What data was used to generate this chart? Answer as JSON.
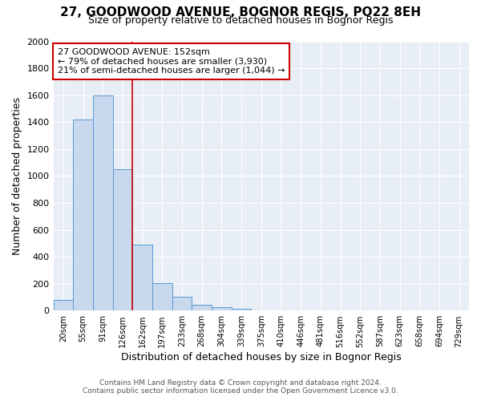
{
  "title_line1": "27, GOODWOOD AVENUE, BOGNOR REGIS, PO22 8EH",
  "title_line2": "Size of property relative to detached houses in Bognor Regis",
  "xlabel": "Distribution of detached houses by size in Bognor Regis",
  "ylabel": "Number of detached properties",
  "categories": [
    "20sqm",
    "55sqm",
    "91sqm",
    "126sqm",
    "162sqm",
    "197sqm",
    "233sqm",
    "268sqm",
    "304sqm",
    "339sqm",
    "375sqm",
    "410sqm",
    "446sqm",
    "481sqm",
    "516sqm",
    "552sqm",
    "587sqm",
    "623sqm",
    "658sqm",
    "694sqm",
    "729sqm"
  ],
  "values": [
    80,
    1420,
    1600,
    1050,
    490,
    205,
    105,
    45,
    25,
    15,
    0,
    0,
    0,
    0,
    0,
    0,
    0,
    0,
    0,
    0,
    0
  ],
  "bar_color": "#c8d8ed",
  "bar_edge_color": "#5a9ad4",
  "vline_color": "#cc0000",
  "annotation_text": "27 GOODWOOD AVENUE: 152sqm\n← 79% of detached houses are smaller (3,930)\n21% of semi-detached houses are larger (1,044) →",
  "annotation_box_color": "white",
  "annotation_box_edge_color": "#cc0000",
  "ylim": [
    0,
    2000
  ],
  "yticks": [
    0,
    200,
    400,
    600,
    800,
    1000,
    1200,
    1400,
    1600,
    1800,
    2000
  ],
  "fig_background_color": "#ffffff",
  "plot_background_color": "#e8eef5",
  "grid_color": "#ffffff",
  "footer_line1": "Contains HM Land Registry data © Crown copyright and database right 2024.",
  "footer_line2": "Contains public sector information licensed under the Open Government Licence v3.0."
}
